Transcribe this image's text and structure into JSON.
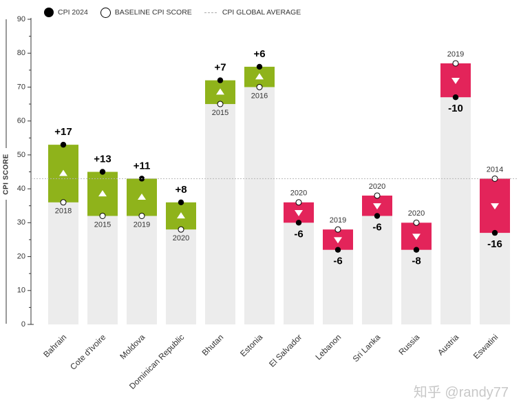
{
  "legend": {
    "cpi2024": "CPI 2024",
    "baseline": "BASELINE CPI SCORE",
    "global_avg": "CPI GLOBAL AVERAGE"
  },
  "watermark": "知乎 @randy77",
  "colors": {
    "gain": "#8fb31b",
    "loss": "#e3245a",
    "base": "#ececec"
  },
  "chart_data": {
    "type": "bar",
    "ylabel": "CPI SCORE",
    "ylim": [
      0,
      90
    ],
    "yticks": [
      0,
      10,
      20,
      30,
      40,
      50,
      60,
      70,
      80,
      90
    ],
    "global_average": 43,
    "categories": [
      "Bahrain",
      "Cote d'Ivoire",
      "Moldova",
      "Dominican Republic",
      "Bhutan",
      "Estonia",
      "El Salvador",
      "Lebanon",
      "Sri Lanka",
      "Russia",
      "Austria",
      "Eswatini"
    ],
    "series": [
      {
        "name": "BASELINE CPI SCORE",
        "values": [
          36,
          32,
          32,
          28,
          65,
          70,
          36,
          28,
          38,
          30,
          77,
          43
        ]
      },
      {
        "name": "CPI 2024",
        "values": [
          53,
          45,
          43,
          36,
          72,
          76,
          30,
          22,
          32,
          22,
          67,
          27
        ]
      }
    ],
    "baseline_years": [
      "2018",
      "2015",
      "2019",
      "2020",
      "2015",
      "2016",
      "2020",
      "2019",
      "2020",
      "2020",
      "2019",
      "2014"
    ],
    "change_labels": [
      "+17",
      "+13",
      "+11",
      "+8",
      "+7",
      "+6",
      "-6",
      "-6",
      "-6",
      "-8",
      "-10",
      "-16"
    ]
  }
}
